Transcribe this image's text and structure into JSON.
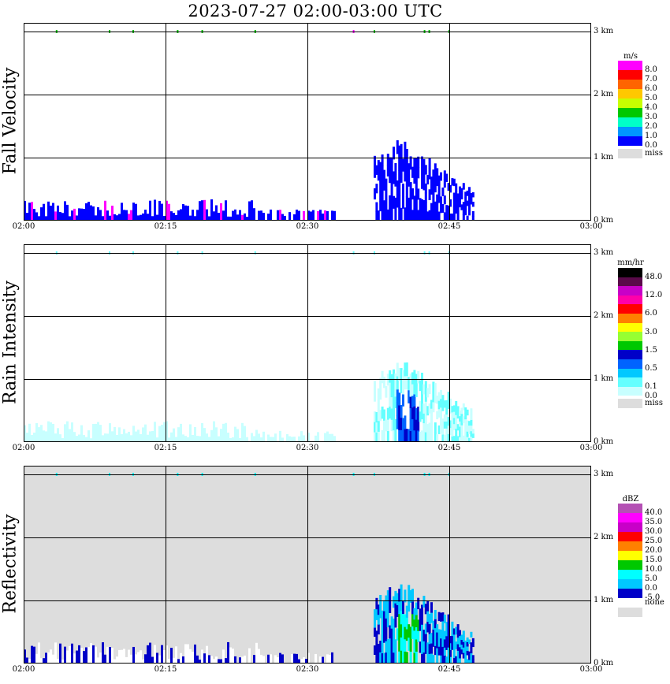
{
  "title": "2023-07-27  02:00-03:00 UTC",
  "x_ticks": [
    "02:00",
    "02:15",
    "02:30",
    "02:45",
    "03:00"
  ],
  "y_ticks": [
    "0 km",
    "1 km",
    "2 km",
    "3 km"
  ],
  "panels": [
    {
      "label": "Fall Velocity",
      "unit": "m/s",
      "background": "#ffffff",
      "colorbar": [
        {
          "label": "8.0",
          "color": "#ff00ff"
        },
        {
          "label": "7.0",
          "color": "#ff0000"
        },
        {
          "label": "6.0",
          "color": "#ff6400"
        },
        {
          "label": "5.0",
          "color": "#ffc800"
        },
        {
          "label": "4.0",
          "color": "#c8ff00"
        },
        {
          "label": "3.0",
          "color": "#00c800"
        },
        {
          "label": "2.0",
          "color": "#00ffc8"
        },
        {
          "label": "1.0",
          "color": "#0096ff"
        },
        {
          "label": "0.0",
          "color": "#0000ff"
        },
        {
          "label": "miss",
          "color": "#dddddd"
        }
      ]
    },
    {
      "label": "Rain Intensity",
      "unit": "mm/hr",
      "background": "#ffffff",
      "colorbar": [
        {
          "label": "48.0",
          "color": "#000000"
        },
        {
          "label": "",
          "color": "#5a0a4a"
        },
        {
          "label": "12.0",
          "color": "#c800c8"
        },
        {
          "label": "",
          "color": "#ff00aa"
        },
        {
          "label": "6.0",
          "color": "#ff0000"
        },
        {
          "label": "",
          "color": "#ff8000"
        },
        {
          "label": "3.0",
          "color": "#ffff00"
        },
        {
          "label": "",
          "color": "#96ff32"
        },
        {
          "label": "1.5",
          "color": "#00c800"
        },
        {
          "label": "",
          "color": "#0000c8"
        },
        {
          "label": "0.5",
          "color": "#0064ff"
        },
        {
          "label": "",
          "color": "#00c8ff"
        },
        {
          "label": "0.1",
          "color": "#64ffff"
        },
        {
          "label": "0.0",
          "color": "#c8ffff"
        },
        {
          "label": "miss",
          "color": "#dddddd"
        }
      ]
    },
    {
      "label": "Reflectivity",
      "unit": "dBZ",
      "background": "#dddddd",
      "colorbar": [
        {
          "label": "40.0",
          "color": "#b450b4"
        },
        {
          "label": "35.0",
          "color": "#ff00ff"
        },
        {
          "label": "30.0",
          "color": "#c800c8"
        },
        {
          "label": "25.0",
          "color": "#ff0000"
        },
        {
          "label": "20.0",
          "color": "#ff8000"
        },
        {
          "label": "15.0",
          "color": "#ffff00"
        },
        {
          "label": "10.0",
          "color": "#00c800"
        },
        {
          "label": "5.0",
          "color": "#00ffff"
        },
        {
          "label": "0.0",
          "color": "#00c8ff"
        },
        {
          "label": "-5.0",
          "color": "#0000c8"
        },
        {
          "label": "none",
          "color": "#ffffff"
        },
        {
          "label": "",
          "color": "#dddddd"
        }
      ]
    }
  ],
  "chart_data": {
    "type": "heatmap",
    "title": "2023-07-27  02:00-03:00 UTC",
    "x_range": [
      "02:00",
      "03:00"
    ],
    "y_range_km": [
      0,
      3.1
    ],
    "grid": true,
    "features": [
      {
        "name": "low-level drizzle",
        "x_start": "02:00",
        "x_end": "02:33",
        "y_top_km": 0.35
      },
      {
        "name": "shower core",
        "x_start": "02:37",
        "x_end": "02:47",
        "y_top_km": 1.25
      },
      {
        "name": "~3 km layer returns",
        "x_start": "02:03",
        "x_end": "02:45",
        "y_km": 3.0
      }
    ]
  }
}
